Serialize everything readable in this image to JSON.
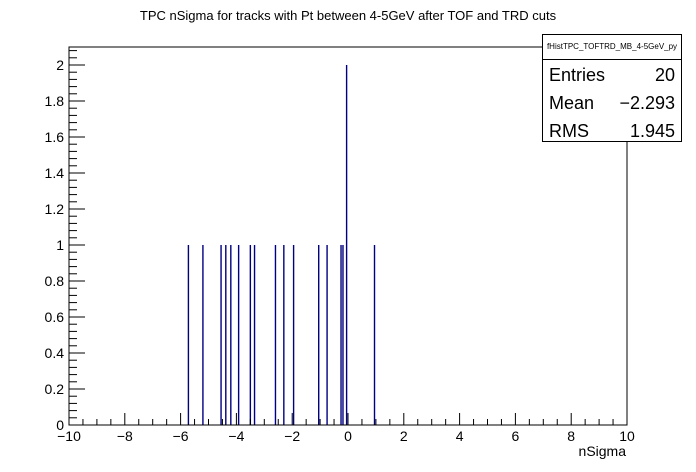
{
  "chart_data": {
    "type": "bar",
    "title": "TPC nSigma for tracks with Pt between 4-5GeV after TOF and TRD cuts",
    "xlabel": "nSigma",
    "ylabel": "",
    "xlim": [
      -10,
      10
    ],
    "ylim": [
      0,
      2.1
    ],
    "bin_width": 0.05,
    "x": [
      -5.72,
      -5.2,
      -4.55,
      -4.38,
      -4.2,
      -3.92,
      -3.5,
      -3.35,
      -2.6,
      -2.3,
      -1.95,
      -1.05,
      -0.75,
      -0.25,
      -0.18,
      -0.05,
      0.95
    ],
    "values": [
      1,
      1,
      1,
      1,
      1,
      1,
      1,
      1,
      1,
      1,
      1,
      1,
      1,
      1,
      1,
      2,
      1
    ],
    "xticks": [
      "−10",
      "−8",
      "−6",
      "−4",
      "−2",
      "0",
      "2",
      "4",
      "6",
      "8",
      "10"
    ],
    "yticks": [
      "0",
      "0.2",
      "0.4",
      "0.6",
      "0.8",
      "1",
      "1.2",
      "1.4",
      "1.6",
      "1.8",
      "2"
    ],
    "bar_color": "#000080",
    "stats": {
      "name": "fHistTPC_TOFTRD_MB_4-5GeV_py",
      "entries_label": "Entries",
      "entries_value": "20",
      "mean_label": "Mean",
      "mean_value": "−2.293",
      "rms_label": "RMS",
      "rms_value": "1.945"
    }
  }
}
